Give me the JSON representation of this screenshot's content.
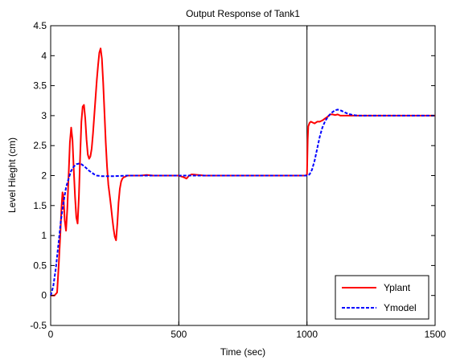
{
  "chart_data": {
    "type": "line",
    "title": "Output Response of Tank1",
    "xlabel": "Time (sec)",
    "ylabel": "Level Hieght (cm)",
    "xlim": [
      0,
      1500
    ],
    "ylim": [
      -0.5,
      4.5
    ],
    "x_ticks": [
      "0",
      "500",
      "1000",
      "1500"
    ],
    "y_ticks": [
      "-0.5",
      "0",
      "0.5",
      "1",
      "1.5",
      "2",
      "2.5",
      "3",
      "3.5",
      "4",
      "4.5"
    ],
    "grid": "x-only",
    "legend_position": "bottom-right",
    "series": [
      {
        "name": "Yplant",
        "color": "#ff0000",
        "line_style": "solid",
        "x": [
          0,
          15,
          25,
          32,
          38,
          42,
          46,
          50,
          55,
          60,
          65,
          70,
          75,
          80,
          85,
          90,
          95,
          100,
          105,
          110,
          115,
          120,
          125,
          130,
          135,
          140,
          145,
          150,
          155,
          160,
          165,
          170,
          175,
          180,
          185,
          190,
          195,
          200,
          205,
          210,
          215,
          220,
          225,
          230,
          235,
          240,
          245,
          250,
          255,
          260,
          265,
          270,
          275,
          280,
          285,
          290,
          295,
          300,
          310,
          320,
          330,
          340,
          350,
          375,
          400,
          450,
          500,
          520,
          530,
          540,
          550,
          600,
          700,
          800,
          900,
          990,
          995,
          1000,
          1003,
          1005,
          1010,
          1015,
          1020,
          1030,
          1040,
          1050,
          1060,
          1070,
          1080,
          1090,
          1100,
          1110,
          1120,
          1130,
          1140,
          1150,
          1200,
          1300,
          1400,
          1500
        ],
        "y": [
          0,
          0,
          0.05,
          0.55,
          1.05,
          1.45,
          1.72,
          1.65,
          1.25,
          1.08,
          1.45,
          2.0,
          2.55,
          2.8,
          2.6,
          2.1,
          1.65,
          1.3,
          1.2,
          1.65,
          2.3,
          2.9,
          3.15,
          3.18,
          2.95,
          2.6,
          2.35,
          2.28,
          2.32,
          2.45,
          2.7,
          3.0,
          3.3,
          3.6,
          3.85,
          4.05,
          4.12,
          3.95,
          3.55,
          3.05,
          2.55,
          2.15,
          1.85,
          1.68,
          1.5,
          1.3,
          1.12,
          0.98,
          0.92,
          1.2,
          1.55,
          1.78,
          1.9,
          1.95,
          1.97,
          1.98,
          1.99,
          2.0,
          2.0,
          2.0,
          2.0,
          2.0,
          2.0,
          2.01,
          2.0,
          2.0,
          2.0,
          1.97,
          1.95,
          2.0,
          2.02,
          2.0,
          2.0,
          2.0,
          2.0,
          2.0,
          2.0,
          2.02,
          2.6,
          2.82,
          2.88,
          2.9,
          2.89,
          2.87,
          2.9,
          2.9,
          2.92,
          2.95,
          2.98,
          3.02,
          3.02,
          3.01,
          3.02,
          3.0,
          3.0,
          3.0,
          3.0,
          3.0,
          3.0,
          3.0
        ]
      },
      {
        "name": "Ymodel",
        "color": "#0000ff",
        "line_style": "dashed",
        "x": [
          0,
          10,
          20,
          30,
          40,
          50,
          60,
          70,
          80,
          90,
          100,
          110,
          120,
          130,
          140,
          150,
          160,
          170,
          180,
          200,
          220,
          250,
          300,
          400,
          500,
          600,
          700,
          800,
          900,
          1000,
          1005,
          1010,
          1020,
          1030,
          1040,
          1050,
          1060,
          1070,
          1080,
          1090,
          1100,
          1110,
          1120,
          1130,
          1140,
          1150,
          1160,
          1170,
          1180,
          1200,
          1250,
          1300,
          1400,
          1500
        ],
        "y": [
          0,
          0.15,
          0.45,
          0.85,
          1.25,
          1.55,
          1.8,
          1.95,
          2.08,
          2.15,
          2.19,
          2.2,
          2.19,
          2.16,
          2.12,
          2.08,
          2.05,
          2.02,
          2.0,
          1.99,
          1.99,
          1.99,
          2.0,
          2.0,
          2.0,
          2.0,
          2.0,
          2.0,
          2.0,
          2.0,
          2.01,
          2.02,
          2.1,
          2.25,
          2.45,
          2.65,
          2.8,
          2.9,
          2.97,
          3.02,
          3.06,
          3.09,
          3.1,
          3.09,
          3.07,
          3.05,
          3.03,
          3.02,
          3.01,
          3.0,
          3.0,
          3.0,
          3.0,
          3.0
        ]
      }
    ]
  }
}
